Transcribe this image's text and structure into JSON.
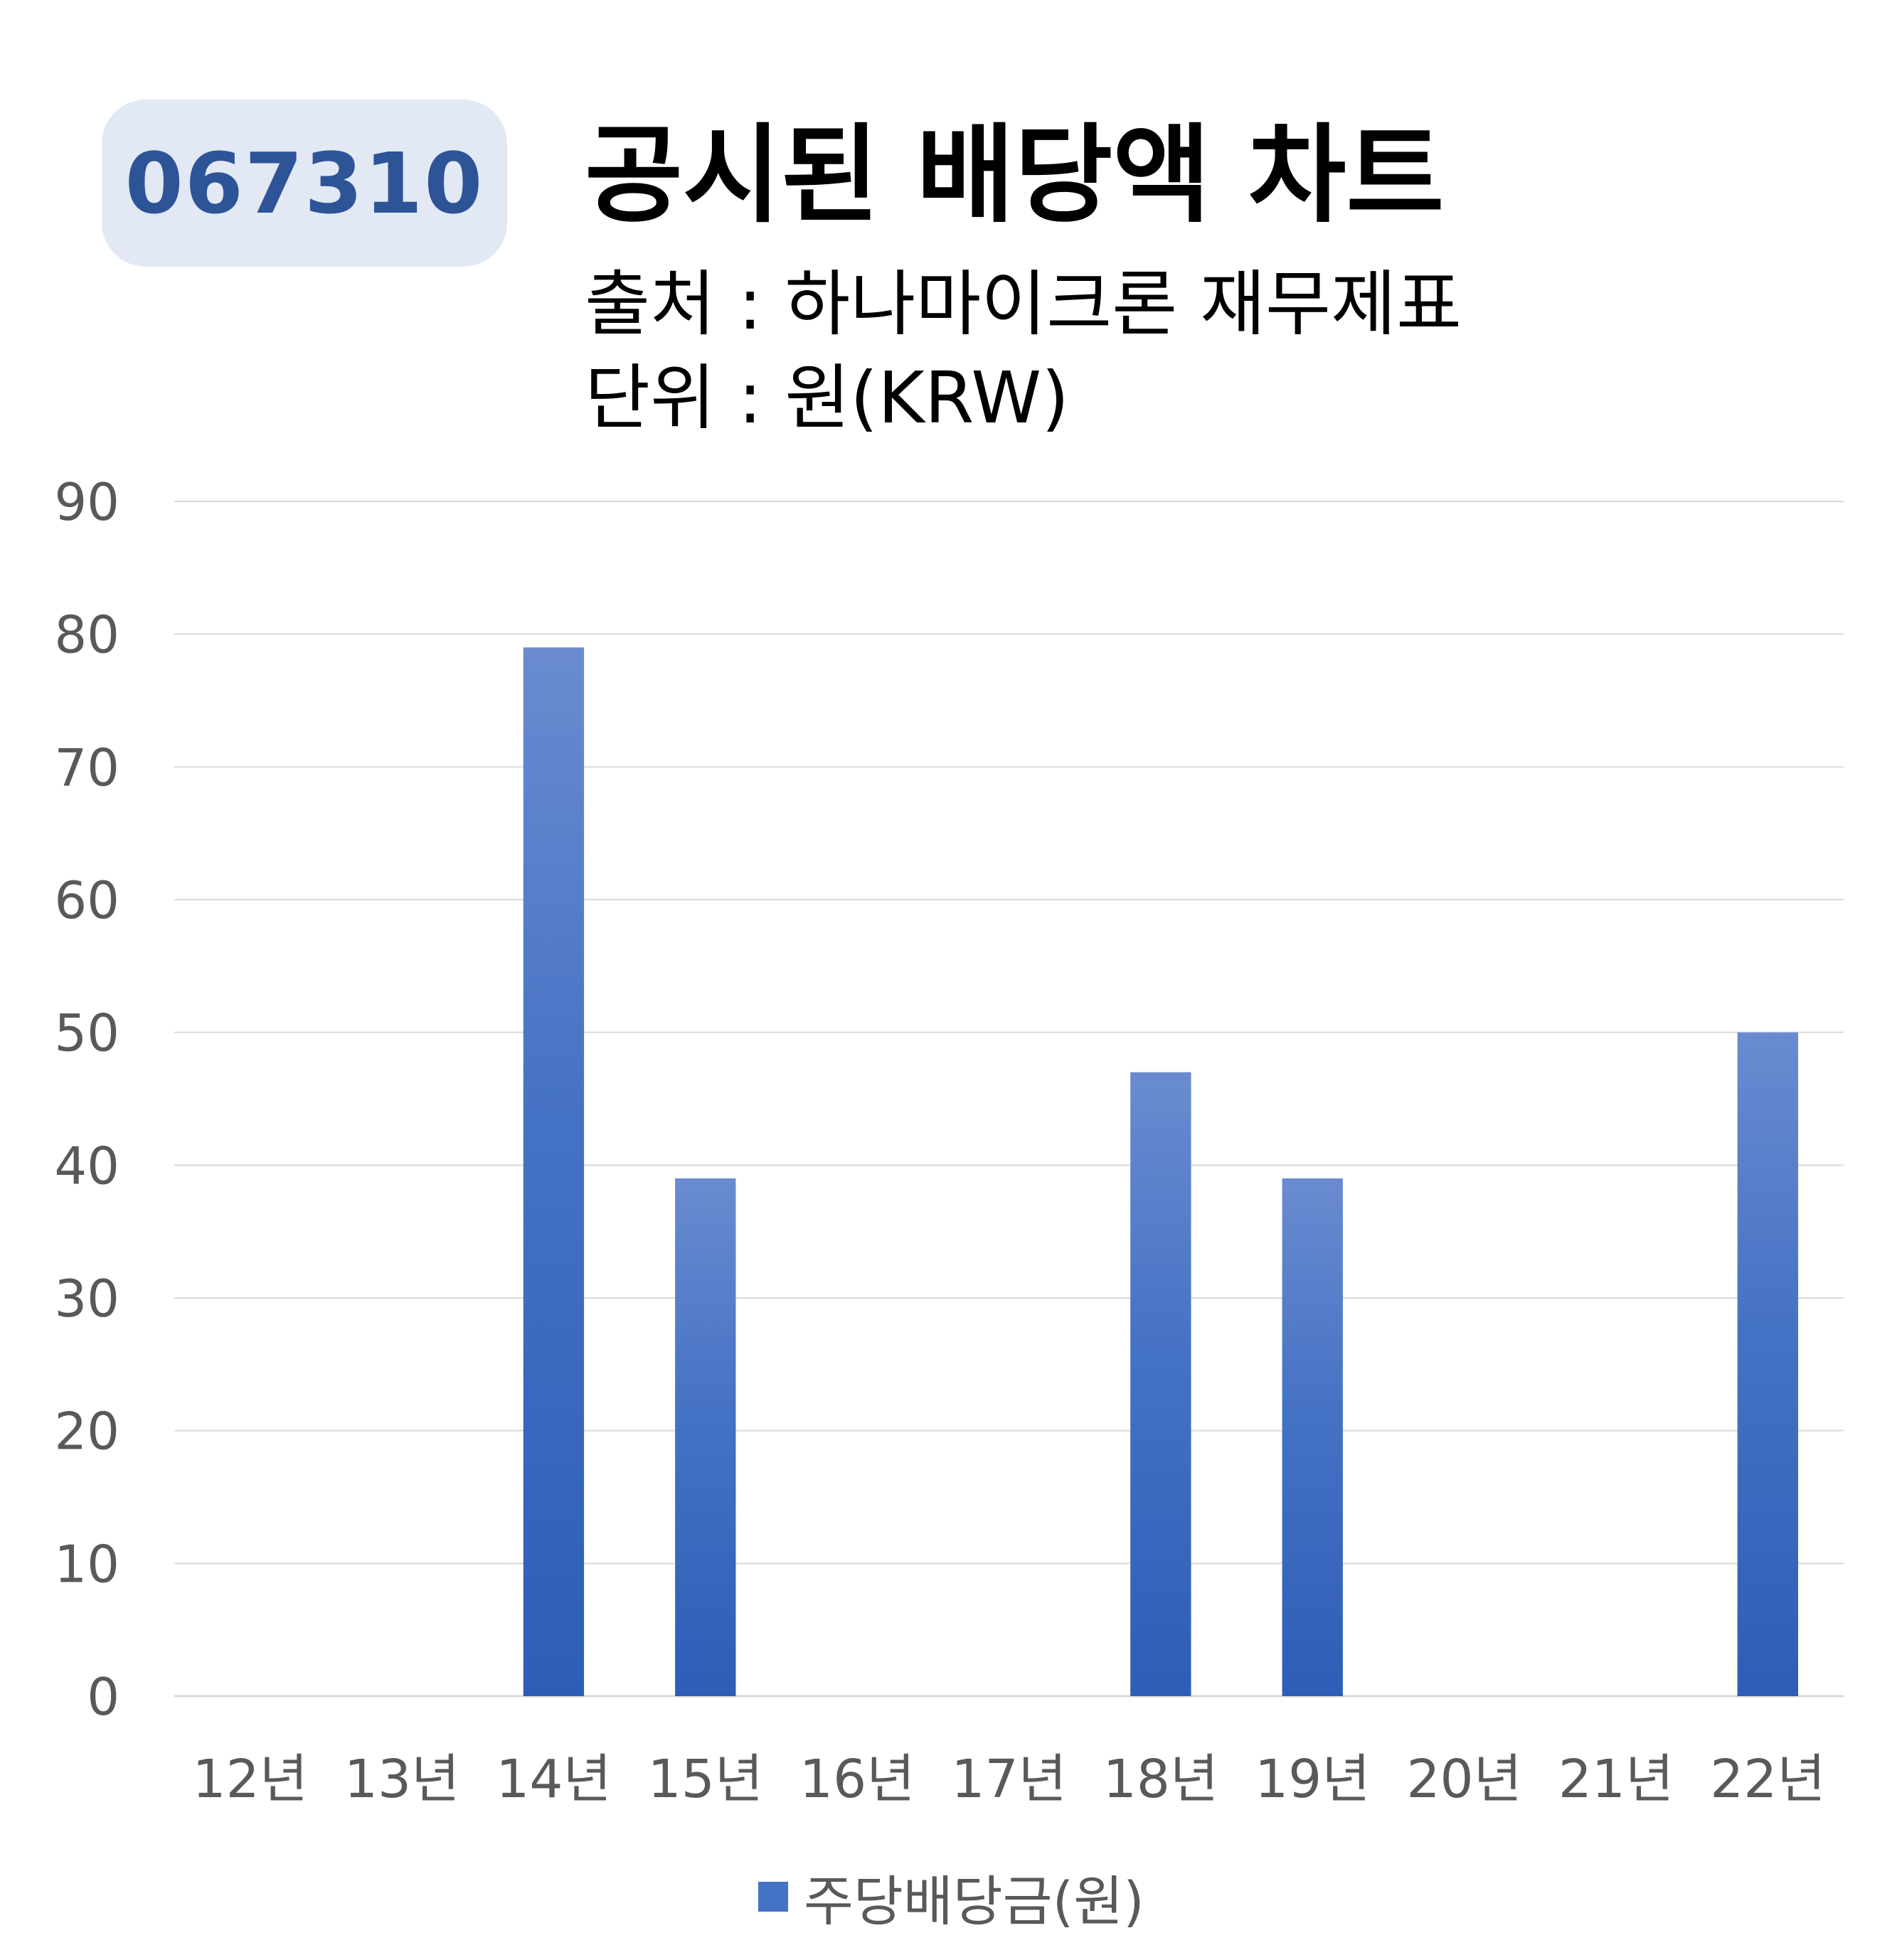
{
  "badge": {
    "code": "067310"
  },
  "header": {
    "title": "공시된 배당액 차트",
    "source": "출처 : 하나마이크론 재무제표",
    "unit": "단위 : 원(KRW)"
  },
  "colors": {
    "badge_bg": "#e2e8f4",
    "badge_text": "#2d5496",
    "bar": "#4472c4",
    "gridline": "#d9d9d9",
    "axis_text": "#595959"
  },
  "chart_data": {
    "type": "bar",
    "categories": [
      "12년",
      "13년",
      "14년",
      "15년",
      "16년",
      "17년",
      "18년",
      "19년",
      "20년",
      "21년",
      "22년"
    ],
    "series": [
      {
        "name": "주당배당금(원)",
        "values": [
          0,
          0,
          79,
          39,
          0,
          0,
          47,
          39,
          0,
          0,
          50
        ]
      }
    ],
    "ylim": [
      0,
      90
    ],
    "yticks": [
      0,
      10,
      20,
      30,
      40,
      50,
      60,
      70,
      80,
      90
    ],
    "grid": true,
    "legend_position": "bottom"
  }
}
